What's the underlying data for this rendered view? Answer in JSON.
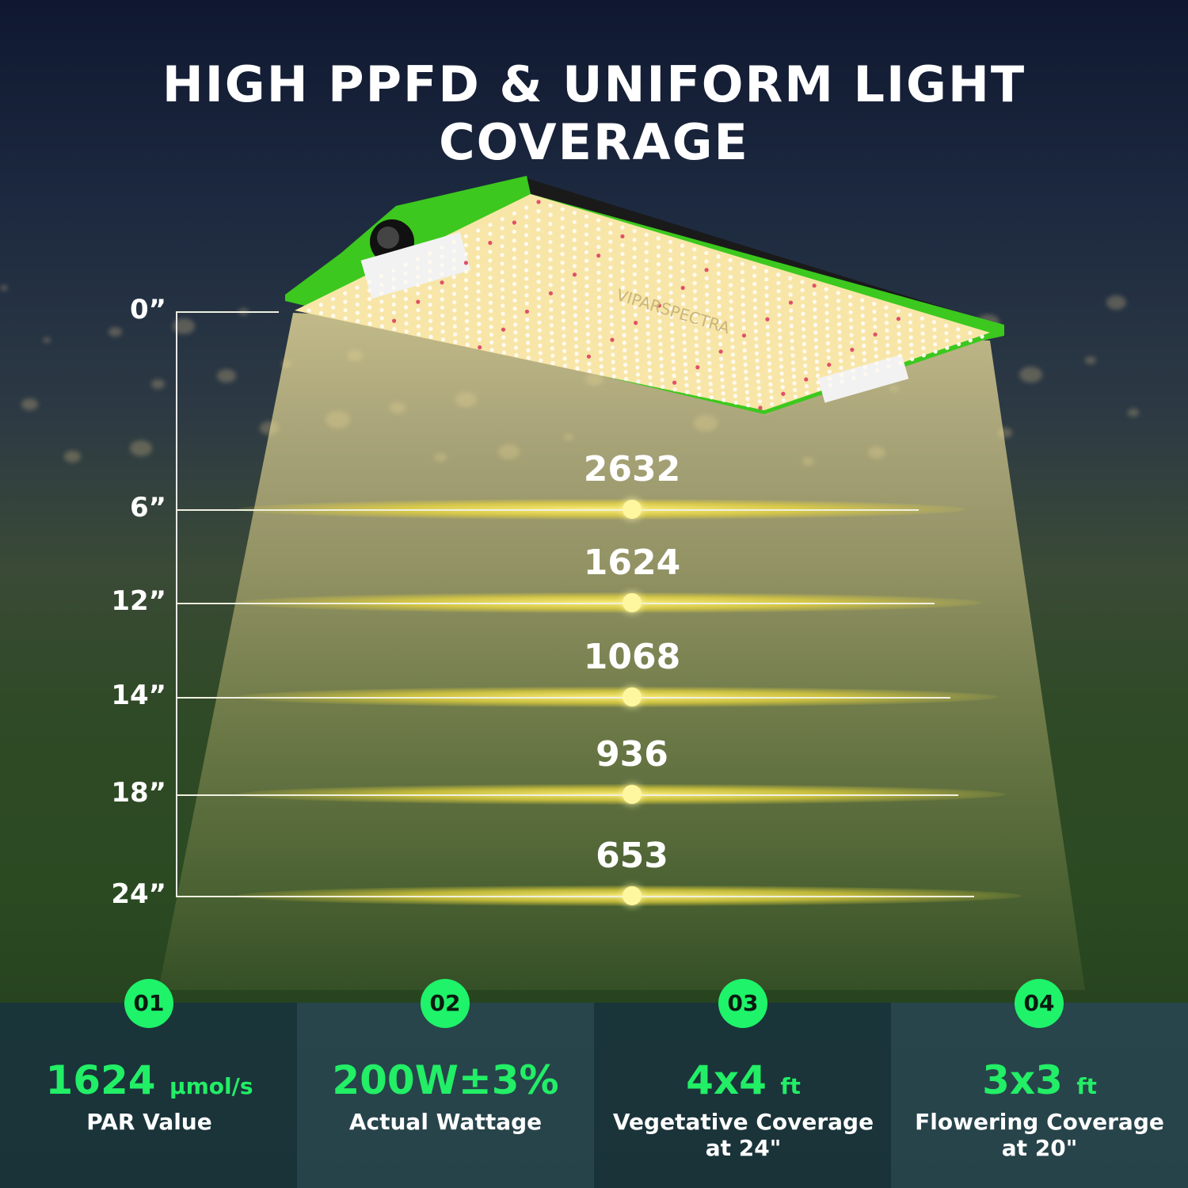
{
  "title": "HIGH PPFD & UNIFORM LIGHT COVERAGE",
  "product": {
    "logo_text": "VIPARSPECTRA",
    "panel_color": "#f8e8a8",
    "frame_color": "#3cc81e"
  },
  "ppfd": [
    {
      "height": "0”",
      "value": ""
    },
    {
      "height": "6”",
      "value": "2632"
    },
    {
      "height": "12”",
      "value": "1624"
    },
    {
      "height": "14”",
      "value": "1068"
    },
    {
      "height": "18”",
      "value": "936"
    },
    {
      "height": "24”",
      "value": "653"
    }
  ],
  "features": [
    {
      "num": "01",
      "value": "1624",
      "unit": "µmol/s",
      "label": "PAR Value",
      "label2": ""
    },
    {
      "num": "02",
      "value": "200W±3%",
      "unit": "",
      "label": "Actual Wattage",
      "label2": ""
    },
    {
      "num": "03",
      "value": "4x4",
      "unit": "ft",
      "label": "Vegetative Coverage",
      "label2": "at 24\""
    },
    {
      "num": "04",
      "value": "3x3",
      "unit": "ft",
      "label": "Flowering Coverage",
      "label2": "at 20\""
    }
  ],
  "colors": {
    "accent": "#1ef36a",
    "glow": "#fff27a"
  }
}
